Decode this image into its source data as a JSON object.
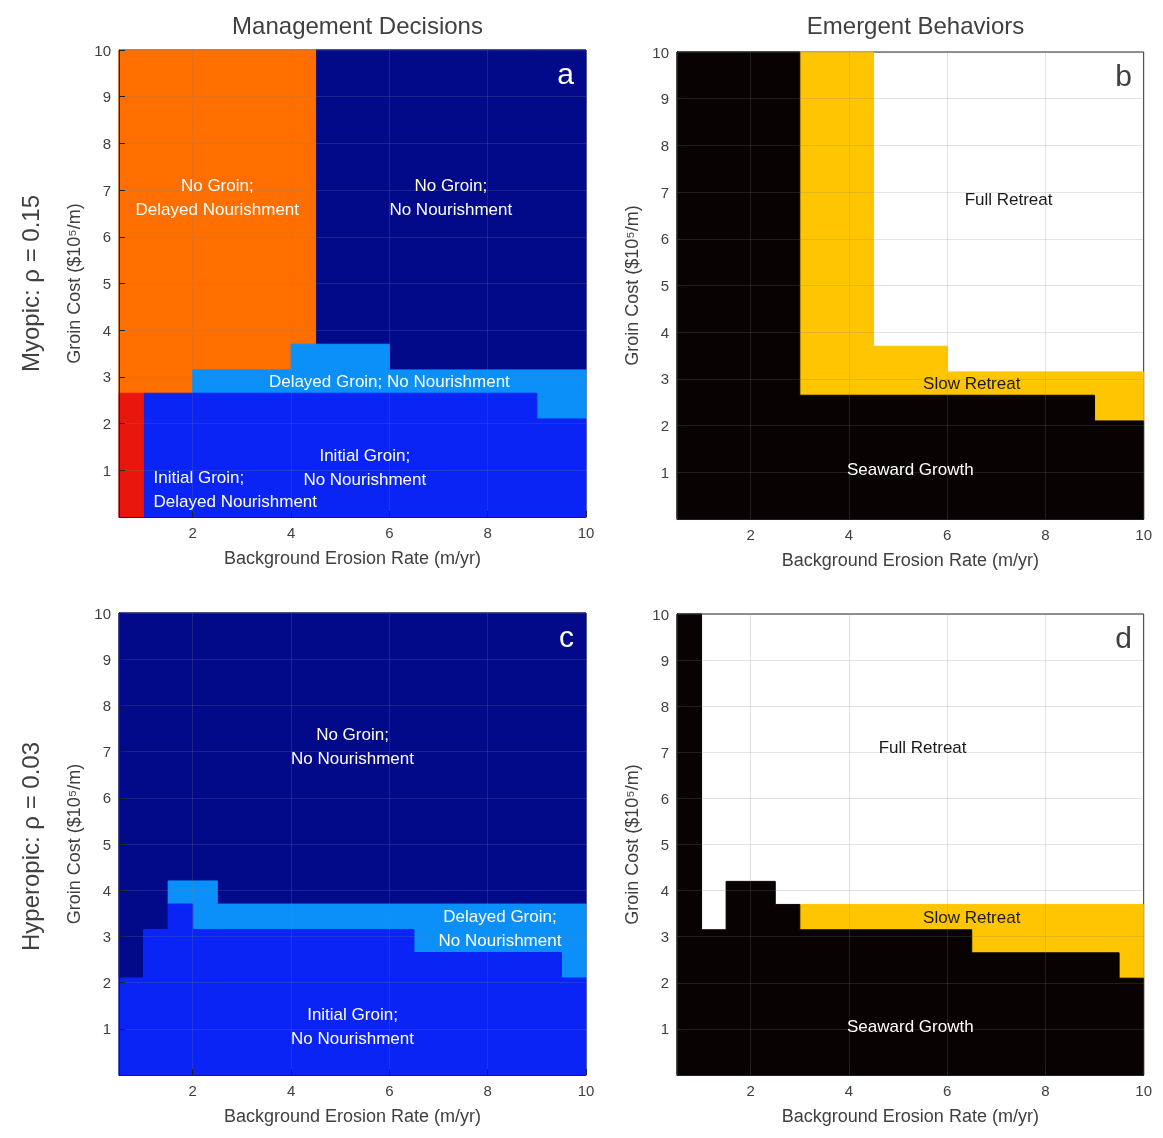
{
  "chart_data": [
    {
      "type": "area",
      "stacked": true,
      "title": "Management Decisions",
      "subtitle": "a",
      "xlabel": "Background Erosion Rate (m/yr)",
      "ylabel": "Groin Cost ($10⁵/m)",
      "x": [
        0.5,
        1,
        1,
        2,
        2,
        4,
        4,
        4.5,
        4.5,
        6,
        6,
        9,
        9,
        10
      ],
      "xlim": [
        0.5,
        10
      ],
      "ylim": [
        0,
        10
      ],
      "xticks": [
        2,
        4,
        6,
        8,
        10
      ],
      "yticks": [
        1,
        2,
        3,
        4,
        5,
        6,
        7,
        8,
        9,
        10
      ],
      "grid": true,
      "series": [
        {
          "color": "#e8160c",
          "values": [
            2.65,
            2.65,
            null,
            null,
            null,
            null,
            null,
            null,
            null,
            null,
            null,
            null,
            null,
            null
          ]
        },
        {
          "color": "#0a24f5",
          "values": [
            null,
            null,
            2.65,
            2.65,
            2.65,
            2.65,
            2.65,
            2.65,
            2.65,
            2.65,
            2.65,
            2.65,
            2.1,
            2.1
          ]
        },
        {
          "color": "#0a90f8",
          "values": [
            null,
            null,
            null,
            null,
            0.5,
            0.5,
            1.05,
            1.05,
            1.05,
            1.05,
            0.5,
            0.5,
            1.05,
            1.05
          ]
        },
        {
          "color": "#ff6f00",
          "values": [
            7.35,
            7.35,
            7.35,
            7.35,
            6.85,
            6.85,
            6.3,
            6.3,
            null,
            null,
            null,
            null,
            null,
            null
          ]
        },
        {
          "color": "#020a8a",
          "values": [
            null,
            null,
            null,
            null,
            null,
            null,
            null,
            null,
            6.3,
            6.3,
            6.85,
            6.85,
            6.85,
            6.85
          ]
        }
      ],
      "annotations": [
        "Initial Groin;\nDelayed Nourishment",
        "Initial Groin;\nNo Nourishment",
        "Delayed Groin; No Nourishment",
        "No Groin;\nDelayed Nourishment",
        "No Groin;\nNo Nourishment",
        "Myopic: ρ = 0.15"
      ]
    },
    {
      "type": "area",
      "stacked": true,
      "title": "Emergent Behaviors",
      "subtitle": "b",
      "xlabel": "Background Erosion Rate (m/yr)",
      "ylabel": "Groin Cost ($10⁵/m)",
      "x": [
        0.5,
        3,
        3,
        4.5,
        4.5,
        6,
        6,
        9,
        9,
        10
      ],
      "xlim": [
        0.5,
        10
      ],
      "ylim": [
        0,
        10
      ],
      "xticks": [
        2,
        4,
        6,
        8,
        10
      ],
      "yticks": [
        1,
        2,
        3,
        4,
        5,
        6,
        7,
        8,
        9,
        10
      ],
      "grid": true,
      "series": [
        {
          "color": "#080202",
          "values": [
            10,
            10,
            2.65,
            2.65,
            2.65,
            2.65,
            2.65,
            2.65,
            2.1,
            2.1
          ]
        },
        {
          "color": "#ffc600",
          "values": [
            null,
            null,
            7.35,
            7.35,
            1.05,
            1.05,
            0.5,
            0.5,
            1.05,
            1.05
          ]
        }
      ],
      "annotations": [
        "Seaward Growth",
        "Slow Retreat",
        "Full Retreat"
      ]
    },
    {
      "type": "area",
      "stacked": true,
      "subtitle": "c",
      "xlabel": "Background Erosion Rate (m/yr)",
      "ylabel": "Groin Cost ($10⁵/m)",
      "x": [
        0.5,
        1,
        1,
        1.5,
        1.5,
        2,
        2,
        2.5,
        2.5,
        6.5,
        6.5,
        9.5,
        9.5,
        10
      ],
      "xlim": [
        0.5,
        10
      ],
      "ylim": [
        0,
        10
      ],
      "xticks": [
        2,
        4,
        6,
        8,
        10
      ],
      "yticks": [
        1,
        2,
        3,
        4,
        5,
        6,
        7,
        8,
        9,
        10
      ],
      "grid": true,
      "series": [
        {
          "color": "#0a24f5",
          "values": [
            2.1,
            2.1,
            3.15,
            3.15,
            3.7,
            3.7,
            3.15,
            3.15,
            3.15,
            3.15,
            2.65,
            2.65,
            2.1,
            2.1
          ]
        },
        {
          "color": "#0a90f8",
          "values": [
            null,
            null,
            null,
            null,
            0.5,
            0.5,
            1.05,
            1.05,
            0.55,
            0.55,
            1.05,
            1.05,
            1.6,
            1.6
          ]
        },
        {
          "color": "#020a8a",
          "values": [
            7.9,
            7.9,
            6.85,
            6.85,
            5.8,
            5.8,
            5.8,
            5.8,
            6.3,
            6.3,
            6.3,
            6.3,
            6.3,
            6.3
          ]
        }
      ],
      "annotations": [
        "Initial Groin;\nNo Nourishment",
        "Delayed Groin;\nNo Nourishment",
        "No Groin;\nNo Nourishment",
        "Hyperopic: ρ = 0.03"
      ]
    },
    {
      "type": "area",
      "stacked": true,
      "subtitle": "d",
      "xlabel": "Background Erosion Rate (m/yr)",
      "ylabel": "Groin Cost ($10⁵/m)",
      "x": [
        0.5,
        1,
        1,
        1.5,
        1.5,
        2.5,
        2.5,
        3,
        3,
        6.5,
        6.5,
        9.5,
        9.5,
        10
      ],
      "xlim": [
        0.5,
        10
      ],
      "ylim": [
        0,
        10
      ],
      "xticks": [
        2,
        4,
        6,
        8,
        10
      ],
      "yticks": [
        1,
        2,
        3,
        4,
        5,
        6,
        7,
        8,
        9,
        10
      ],
      "grid": true,
      "series": [
        {
          "color": "#080202",
          "values": [
            10,
            10,
            3.15,
            3.15,
            4.2,
            4.2,
            3.7,
            3.7,
            3.15,
            3.15,
            2.65,
            2.65,
            2.1,
            2.1
          ]
        },
        {
          "color": "#ffc600",
          "values": [
            null,
            null,
            null,
            null,
            null,
            null,
            null,
            null,
            0.55,
            0.55,
            1.05,
            1.05,
            1.6,
            1.6
          ]
        }
      ],
      "annotations": [
        "Seaward Growth",
        "Slow Retreat",
        "Full Retreat"
      ]
    }
  ]
}
